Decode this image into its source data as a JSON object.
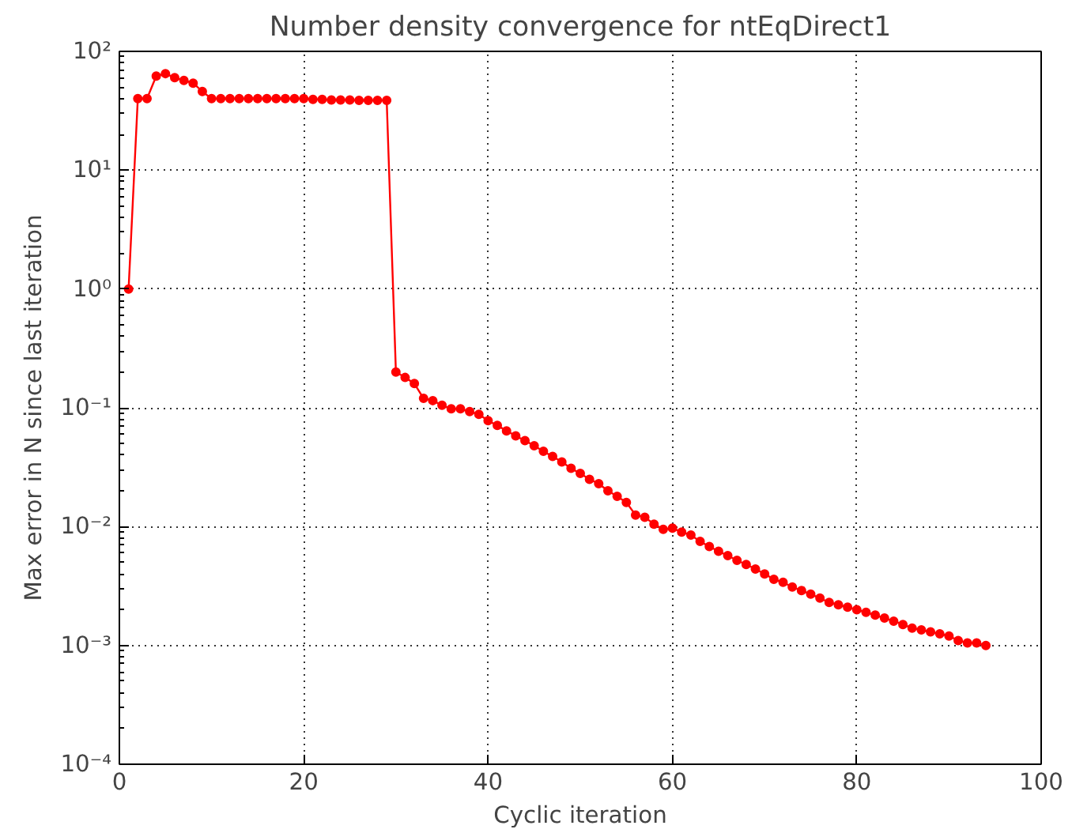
{
  "chart_data": {
    "type": "line",
    "title": "Number density convergence for ntEqDirect1",
    "xlabel": "Cyclic iteration",
    "ylabel": "Max error in N since last iteration",
    "x": [
      1,
      2,
      3,
      4,
      5,
      6,
      7,
      8,
      9,
      10,
      11,
      12,
      13,
      14,
      15,
      16,
      17,
      18,
      19,
      20,
      21,
      22,
      23,
      24,
      25,
      26,
      27,
      28,
      29,
      30,
      31,
      32,
      33,
      34,
      35,
      36,
      37,
      38,
      39,
      40,
      41,
      42,
      43,
      44,
      45,
      46,
      47,
      48,
      49,
      50,
      51,
      52,
      53,
      54,
      55,
      56,
      57,
      58,
      59,
      60,
      61,
      62,
      63,
      64,
      65,
      66,
      67,
      68,
      69,
      70,
      71,
      72,
      73,
      74,
      75,
      76,
      77,
      78,
      79,
      80,
      81,
      82,
      83,
      84,
      85,
      86,
      87,
      88,
      89,
      90,
      91,
      92,
      93,
      94
    ],
    "series": [
      {
        "color": "#ff0000",
        "values": [
          1,
          40,
          40,
          62,
          65,
          60,
          57,
          54,
          46,
          40,
          40,
          40,
          40,
          40,
          40,
          40,
          40,
          40,
          40,
          40,
          39.5,
          39.5,
          39,
          39,
          39,
          38.7,
          38.7,
          38.7,
          38.7,
          0.2,
          0.18,
          0.16,
          0.12,
          0.115,
          0.105,
          0.098,
          0.098,
          0.093,
          0.088,
          0.078,
          0.071,
          0.064,
          0.058,
          0.053,
          0.048,
          0.043,
          0.039,
          0.035,
          0.031,
          0.028,
          0.025,
          0.023,
          0.02,
          0.018,
          0.016,
          0.0125,
          0.012,
          0.0105,
          0.0095,
          0.0097,
          0.009,
          0.0085,
          0.0075,
          0.0068,
          0.0062,
          0.0057,
          0.0052,
          0.0048,
          0.0044,
          0.004,
          0.0036,
          0.0034,
          0.0031,
          0.0029,
          0.0027,
          0.0025,
          0.0023,
          0.0022,
          0.0021,
          0.002,
          0.0019,
          0.0018,
          0.0017,
          0.0016,
          0.0015,
          0.0014,
          0.00135,
          0.0013,
          0.00125,
          0.0012,
          0.0011,
          0.00105,
          0.00105,
          0.001
        ]
      }
    ],
    "xlim": [
      0,
      100
    ],
    "xticks": [
      0,
      20,
      40,
      60,
      80,
      100
    ],
    "ylim": [
      0.0001,
      100
    ],
    "yticks": [
      {
        "value": 0.0001,
        "label": "10⁻⁴"
      },
      {
        "value": 0.001,
        "label": "10⁻³"
      },
      {
        "value": 0.01,
        "label": "10⁻²"
      },
      {
        "value": 0.1,
        "label": "10⁻¹"
      },
      {
        "value": 1,
        "label": "10⁰"
      },
      {
        "value": 10,
        "label": "10¹"
      },
      {
        "value": 100,
        "label": "10²"
      }
    ],
    "log": "y",
    "grid": true,
    "marker": "circle",
    "line_style": "solid"
  }
}
